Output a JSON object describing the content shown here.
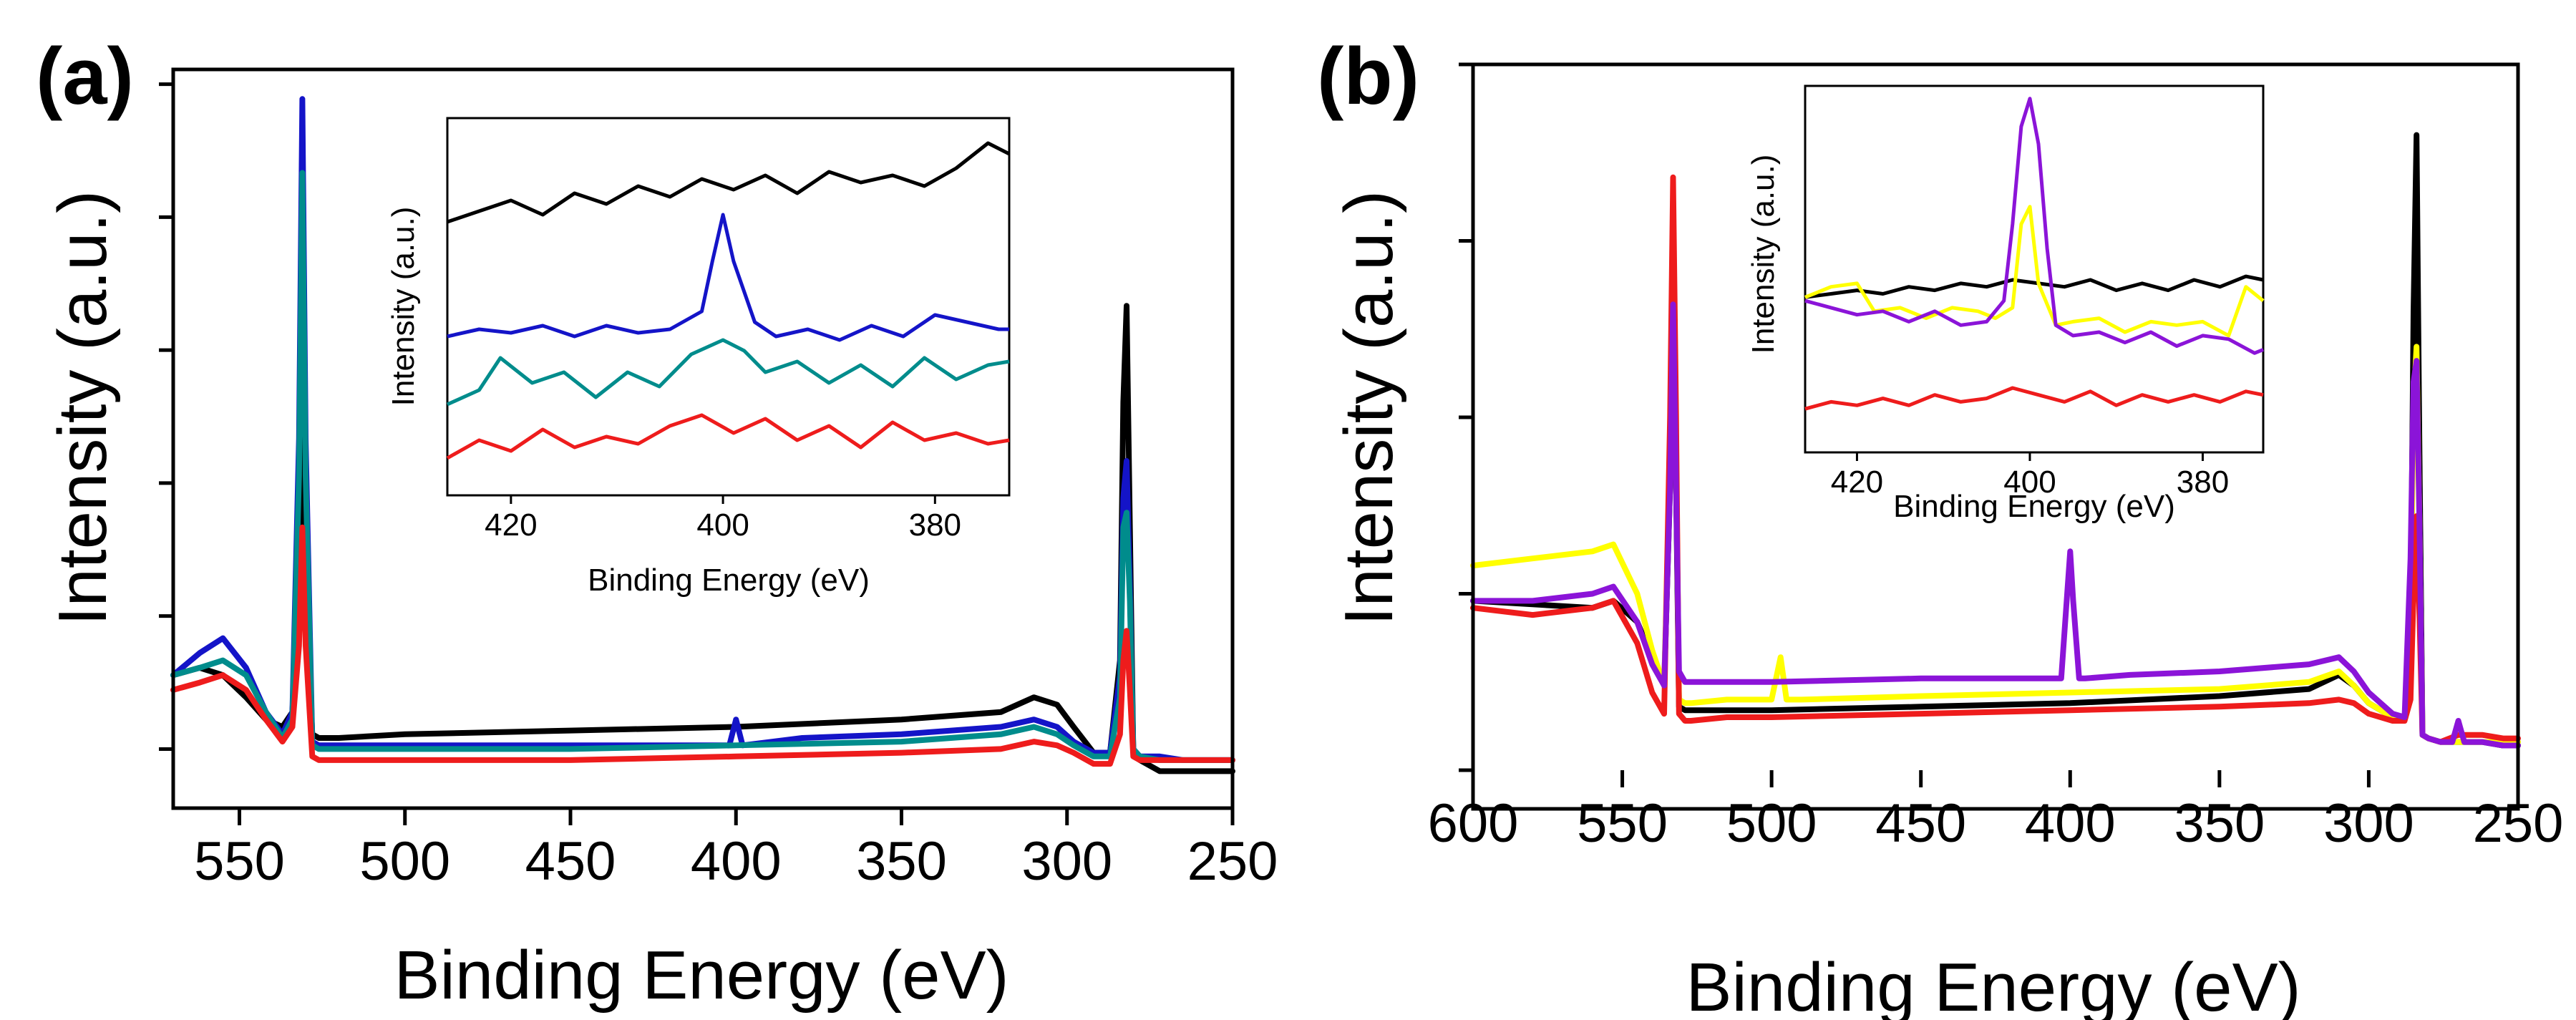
{
  "chart_data": [
    {
      "type": "line",
      "panel_label": "(a)",
      "xlabel": "Binding Energy (eV)",
      "ylabel": "Intensity (a.u.)",
      "xlim": [
        570,
        250
      ],
      "ylim": [
        0,
        100
      ],
      "x_ticks": [
        550,
        500,
        450,
        400,
        350,
        300,
        250
      ],
      "y_ticks": [
        8,
        26,
        44,
        62,
        80,
        98
      ],
      "y_tick_labels": "none",
      "series": [
        {
          "name": "black",
          "color": "#000000",
          "x": [
            570,
            562,
            555,
            548,
            542,
            537,
            534,
            532,
            531,
            530,
            528,
            526,
            520,
            500,
            450,
            400,
            350,
            320,
            310,
            303,
            298,
            292,
            287,
            284,
            283,
            282,
            281,
            280,
            278,
            272,
            265,
            258,
            250
          ],
          "y": [
            18,
            19,
            18,
            15,
            12,
            11,
            13,
            30,
            52,
            30,
            10,
            9.5,
            9.5,
            10,
            10.5,
            11,
            12,
            13,
            15,
            14,
            11,
            7.5,
            7.5,
            20,
            55,
            68,
            38,
            8,
            6.5,
            5,
            5,
            5,
            5
          ]
        },
        {
          "name": "blue",
          "color": "#1414c8",
          "x": [
            570,
            562,
            555,
            548,
            542,
            537,
            534,
            532,
            531,
            530,
            528,
            526,
            520,
            500,
            450,
            402,
            400,
            398,
            380,
            350,
            320,
            310,
            303,
            298,
            292,
            287,
            284,
            283,
            282,
            281,
            280,
            278,
            272,
            265,
            258,
            250
          ],
          "y": [
            18,
            21,
            23,
            19,
            13,
            10,
            13,
            50,
            96,
            50,
            9,
            8.5,
            8.5,
            8.5,
            8.5,
            8.5,
            12,
            8.5,
            9.5,
            10,
            11,
            12,
            11,
            9,
            7.5,
            7.5,
            18,
            42,
            47,
            30,
            8,
            7,
            7,
            6.5,
            6.5,
            6.5
          ]
        },
        {
          "name": "teal",
          "color": "#008c8c",
          "x": [
            570,
            562,
            555,
            548,
            542,
            537,
            534,
            532,
            531,
            530,
            528,
            526,
            520,
            500,
            450,
            400,
            350,
            320,
            310,
            303,
            298,
            292,
            287,
            284,
            283,
            282,
            281,
            280,
            278,
            272,
            265,
            258,
            250
          ],
          "y": [
            18,
            19,
            20,
            18,
            13,
            9.5,
            12,
            45,
            86,
            45,
            8.5,
            8,
            8,
            8,
            8,
            8.5,
            9,
            10,
            11,
            10,
            8.5,
            7,
            7,
            15,
            38,
            40,
            28,
            8,
            7,
            6.5,
            6.5,
            6.5,
            6.5
          ]
        },
        {
          "name": "red",
          "color": "#ee1c1c",
          "x": [
            570,
            562,
            555,
            548,
            542,
            537,
            534,
            532,
            531,
            530,
            528,
            526,
            520,
            500,
            450,
            400,
            350,
            320,
            310,
            303,
            298,
            292,
            287,
            284,
            283,
            282,
            281,
            280,
            278,
            272,
            265,
            258,
            250
          ],
          "y": [
            16,
            17,
            18,
            16,
            12,
            9,
            11,
            22,
            38,
            22,
            7,
            6.5,
            6.5,
            6.5,
            6.5,
            7,
            7.5,
            8,
            9,
            8.5,
            7.5,
            6,
            6,
            10,
            20,
            24,
            16,
            7,
            6.5,
            6.5,
            6.5,
            6.5,
            6.5
          ]
        }
      ],
      "inset": {
        "xlabel": "Binding Energy (eV)",
        "ylabel": "Intensity (a.u.)",
        "xlim": [
          426,
          373
        ],
        "ylim": [
          0,
          100
        ],
        "x_ticks": [
          420,
          400,
          380
        ],
        "series": [
          {
            "name": "black",
            "color": "#000000",
            "x": [
              426,
              423,
              420,
              417,
              414,
              411,
              408,
              405,
              402,
              399,
              396,
              393,
              390,
              387,
              384,
              381,
              378,
              375,
              373
            ],
            "y": [
              73,
              76,
              79,
              75,
              81,
              78,
              83,
              80,
              85,
              82,
              86,
              81,
              87,
              84,
              86,
              83,
              88,
              95,
              92
            ]
          },
          {
            "name": "blue",
            "color": "#1414c8",
            "x": [
              426,
              423,
              420,
              417,
              414,
              411,
              408,
              405,
              402,
              401,
              400,
              399,
              397,
              395,
              392,
              389,
              386,
              383,
              380,
              377,
              374,
              373
            ],
            "y": [
              41,
              43,
              42,
              44,
              41,
              44,
              42,
              43,
              48,
              62,
              75,
              62,
              45,
              41,
              43,
              40,
              44,
              41,
              47,
              45,
              43,
              43
            ]
          },
          {
            "name": "teal",
            "color": "#008c8c",
            "x": [
              426,
              423,
              421,
              418,
              415,
              412,
              409,
              406,
              403,
              400,
              398,
              396,
              393,
              390,
              387,
              384,
              381,
              378,
              375,
              373
            ],
            "y": [
              22,
              26,
              35,
              28,
              31,
              24,
              31,
              27,
              36,
              40,
              37,
              31,
              34,
              28,
              33,
              27,
              35,
              29,
              33,
              34
            ]
          },
          {
            "name": "red",
            "color": "#ee1c1c",
            "x": [
              426,
              423,
              420,
              417,
              414,
              411,
              408,
              405,
              402,
              399,
              396,
              393,
              390,
              387,
              384,
              381,
              378,
              375,
              373
            ],
            "y": [
              7,
              12,
              9,
              15,
              10,
              13,
              11,
              16,
              19,
              14,
              18,
              12,
              16,
              10,
              17,
              12,
              14,
              11,
              12
            ]
          }
        ]
      }
    },
    {
      "type": "line",
      "panel_label": "(b)",
      "xlabel": "Binding Energy (eV)",
      "ylabel": "Intensity (a.u.)",
      "xlim": [
        600,
        250
      ],
      "ylim": [
        0,
        100
      ],
      "x_ticks": [
        600,
        550,
        500,
        450,
        400,
        350,
        300,
        250
      ],
      "y_ticks": [
        0,
        25,
        50,
        75,
        100
      ],
      "y_tick_labels": "none",
      "series": [
        {
          "name": "black",
          "color": "#000000",
          "x": [
            600,
            580,
            560,
            553,
            545,
            540,
            536,
            534,
            533,
            532,
            531,
            529,
            527,
            500,
            450,
            400,
            350,
            320,
            310,
            305,
            300,
            292,
            288,
            286,
            285,
            284,
            283,
            282,
            280,
            276,
            270,
            262,
            255,
            250
          ],
          "y": [
            24,
            23.5,
            23,
            24,
            21,
            16,
            12,
            40,
            76,
            40,
            9,
            8.5,
            8.5,
            8.5,
            9,
            9.5,
            10.5,
            11.5,
            13.5,
            12,
            9.5,
            7.5,
            7.5,
            18,
            65,
            90,
            45,
            5,
            4.5,
            4,
            4,
            4,
            3.5,
            3.5
          ]
        },
        {
          "name": "yellow",
          "color": "#ffff00",
          "x": [
            600,
            580,
            560,
            553,
            545,
            540,
            536,
            534,
            533,
            532,
            531,
            529,
            527,
            515,
            500,
            497,
            495,
            490,
            450,
            400,
            350,
            320,
            310,
            305,
            300,
            292,
            288,
            286,
            285,
            284,
            283,
            282,
            280,
            276,
            270,
            262,
            255,
            250
          ],
          "y": [
            29,
            30,
            31,
            32,
            25,
            17,
            12,
            45,
            77,
            45,
            10,
            9.5,
            9.5,
            10,
            10,
            16,
            10,
            10,
            10.5,
            11,
            11.5,
            12.5,
            14,
            12,
            9.5,
            7.5,
            7.5,
            20,
            52,
            60,
            35,
            5,
            4.5,
            4,
            4,
            4,
            4,
            4
          ]
        },
        {
          "name": "red",
          "color": "#ee1c1c",
          "x": [
            600,
            580,
            560,
            553,
            545,
            540,
            536,
            534,
            533,
            532,
            531,
            529,
            527,
            515,
            500,
            450,
            400,
            350,
            320,
            310,
            305,
            300,
            292,
            288,
            286,
            285,
            284,
            283,
            282,
            280,
            276,
            270,
            262,
            255,
            250
          ],
          "y": [
            23,
            22,
            23,
            24,
            18,
            11,
            8,
            50,
            84,
            50,
            8,
            7,
            7,
            7.5,
            7.5,
            8,
            8.5,
            9,
            9.5,
            10,
            9.5,
            8,
            7,
            7,
            10,
            25,
            36,
            22,
            5,
            4.5,
            4,
            5,
            5,
            4.5,
            4.5
          ]
        },
        {
          "name": "purple",
          "color": "#8b14d8",
          "x": [
            600,
            580,
            560,
            553,
            545,
            540,
            536,
            534,
            533,
            532,
            531,
            529,
            527,
            520,
            500,
            450,
            403,
            401,
            400,
            399,
            397,
            395,
            380,
            350,
            320,
            310,
            305,
            300,
            292,
            288,
            286,
            285,
            284,
            283,
            282,
            280,
            276,
            272,
            270,
            268,
            262,
            255,
            250
          ],
          "y": [
            24,
            24,
            25,
            26,
            21,
            15,
            12,
            40,
            66,
            40,
            14,
            12.5,
            12.5,
            12.5,
            12.5,
            13,
            13,
            25,
            31,
            24,
            13,
            13,
            13.5,
            14,
            15,
            16,
            14,
            11,
            8,
            7.5,
            30,
            55,
            58,
            35,
            5,
            4.5,
            4,
            4,
            7,
            4,
            4,
            3.5,
            3.5
          ]
        }
      ],
      "inset": {
        "xlabel": "Binding Energy (eV)",
        "ylabel": "Intensity (a.u.)",
        "xlim": [
          426,
          373
        ],
        "ylim": [
          0,
          100
        ],
        "x_ticks": [
          420,
          400,
          380
        ],
        "series": [
          {
            "name": "black",
            "color": "#000000",
            "x": [
              426,
              423,
              420,
              417,
              414,
              411,
              408,
              405,
              402,
              399,
              396,
              393,
              390,
              387,
              384,
              381,
              378,
              375,
              373
            ],
            "y": [
              41,
              42,
              43,
              42,
              44,
              43,
              45,
              44,
              46,
              45,
              44,
              46,
              43,
              45,
              43,
              46,
              44,
              47,
              46
            ]
          },
          {
            "name": "yellow",
            "color": "#ffff00",
            "x": [
              426,
              423,
              420,
              418,
              415,
              412,
              409,
              406,
              404,
              402,
              401,
              400,
              399,
              397,
              395,
              392,
              389,
              386,
              383,
              380,
              377,
              375,
              373
            ],
            "y": [
              41,
              44,
              45,
              37,
              38,
              35,
              38,
              37,
              35,
              38,
              62,
              67,
              45,
              33,
              34,
              35,
              31,
              34,
              33,
              34,
              30,
              44,
              40
            ]
          },
          {
            "name": "purple",
            "color": "#8b14d8",
            "x": [
              426,
              423,
              420,
              417,
              414,
              411,
              408,
              405,
              403,
              402,
              401,
              400,
              399,
              398,
              397,
              395,
              392,
              389,
              386,
              383,
              380,
              377,
              374,
              373
            ],
            "y": [
              40,
              38,
              36,
              37,
              34,
              37,
              33,
              34,
              40,
              62,
              90,
              98,
              85,
              55,
              33,
              30,
              31,
              28,
              31,
              27,
              30,
              29,
              25,
              26
            ]
          },
          {
            "name": "red",
            "color": "#ee1c1c",
            "x": [
              426,
              423,
              420,
              417,
              414,
              411,
              408,
              405,
              402,
              399,
              396,
              393,
              390,
              387,
              384,
              381,
              378,
              375,
              373
            ],
            "y": [
              9,
              11,
              10,
              12,
              10,
              13,
              11,
              12,
              15,
              13,
              11,
              14,
              10,
              13,
              11,
              13,
              11,
              14,
              13
            ]
          }
        ]
      }
    }
  ]
}
